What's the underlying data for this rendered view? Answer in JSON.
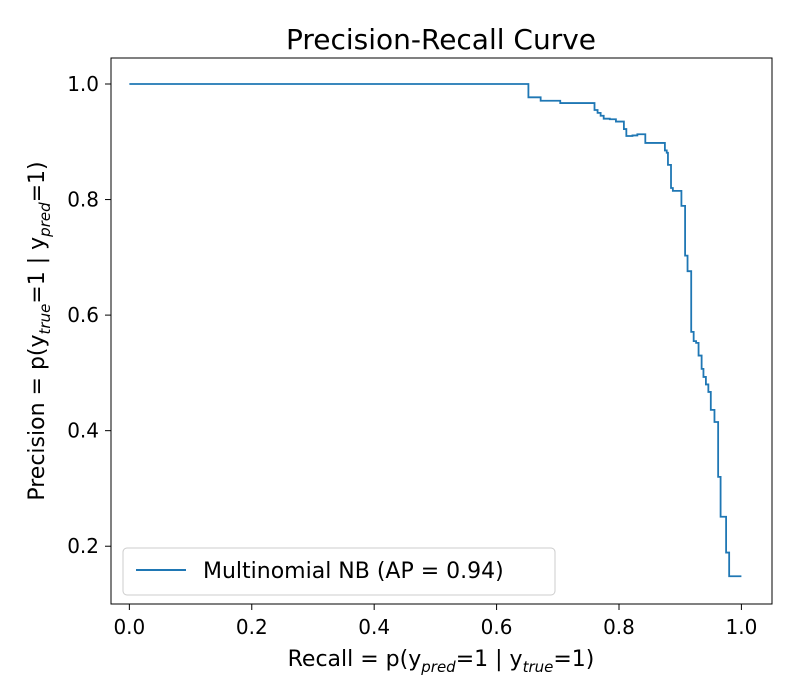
{
  "chart_data": {
    "type": "line",
    "title": "Precision-Recall Curve",
    "xlabel": {
      "prefix": "Recall = p(y",
      "sub1": "pred",
      "mid": "=1 | y",
      "sub2": "true",
      "suffix": "=1)"
    },
    "ylabel": {
      "prefix": "Precision = p(y",
      "sub1": "true",
      "mid": "=1 | y",
      "sub2": "pred",
      "suffix": "=1)"
    },
    "xlim": [
      -0.03,
      1.05
    ],
    "ylim": [
      0.1,
      1.045
    ],
    "xticks": [
      0.0,
      0.2,
      0.4,
      0.6,
      0.8,
      1.0
    ],
    "xtick_labels": [
      "0.0",
      "0.2",
      "0.4",
      "0.6",
      "0.8",
      "1.0"
    ],
    "yticks": [
      0.2,
      0.4,
      0.6,
      0.8,
      1.0
    ],
    "ytick_labels": [
      "0.2",
      "0.4",
      "0.6",
      "0.8",
      "1.0"
    ],
    "grid": false,
    "legend_position": "lower-left",
    "series": [
      {
        "name": "Multinomial NB (AP = 0.94)",
        "color": "#1f77b4",
        "step": "post",
        "x": [
          0.0,
          0.652,
          0.652,
          0.672,
          0.672,
          0.704,
          0.704,
          0.76,
          0.76,
          0.765,
          0.765,
          0.77,
          0.77,
          0.775,
          0.775,
          0.785,
          0.785,
          0.795,
          0.795,
          0.808,
          0.808,
          0.812,
          0.812,
          0.822,
          0.822,
          0.83,
          0.83,
          0.843,
          0.843,
          0.863,
          0.863,
          0.875,
          0.875,
          0.878,
          0.878,
          0.88,
          0.88,
          0.885,
          0.885,
          0.888,
          0.888,
          0.902,
          0.902,
          0.908,
          0.908,
          0.912,
          0.912,
          0.918,
          0.918,
          0.922,
          0.922,
          0.926,
          0.926,
          0.93,
          0.93,
          0.935,
          0.935,
          0.938,
          0.938,
          0.942,
          0.942,
          0.946,
          0.946,
          0.95,
          0.95,
          0.956,
          0.956,
          0.962,
          0.962,
          0.966,
          0.966,
          0.975,
          0.975,
          0.98,
          0.98,
          0.985,
          0.985,
          0.99,
          0.99,
          1.0
        ],
        "y": [
          1.0,
          1.0,
          0.977,
          0.977,
          0.971,
          0.971,
          0.967,
          0.967,
          0.955,
          0.955,
          0.95,
          0.95,
          0.945,
          0.945,
          0.94,
          0.94,
          0.939,
          0.939,
          0.935,
          0.935,
          0.922,
          0.922,
          0.91,
          0.91,
          0.911,
          0.911,
          0.913,
          0.913,
          0.898,
          0.898,
          0.898,
          0.898,
          0.885,
          0.885,
          0.881,
          0.881,
          0.86,
          0.86,
          0.82,
          0.82,
          0.815,
          0.815,
          0.789,
          0.789,
          0.703,
          0.703,
          0.676,
          0.676,
          0.571,
          0.571,
          0.555,
          0.555,
          0.552,
          0.552,
          0.53,
          0.53,
          0.507,
          0.507,
          0.493,
          0.493,
          0.48,
          0.48,
          0.467,
          0.467,
          0.436,
          0.436,
          0.415,
          0.415,
          0.32,
          0.32,
          0.251,
          0.251,
          0.189,
          0.189,
          0.148,
          0.148,
          0.148,
          0.148,
          0.148,
          0.148
        ]
      }
    ]
  }
}
